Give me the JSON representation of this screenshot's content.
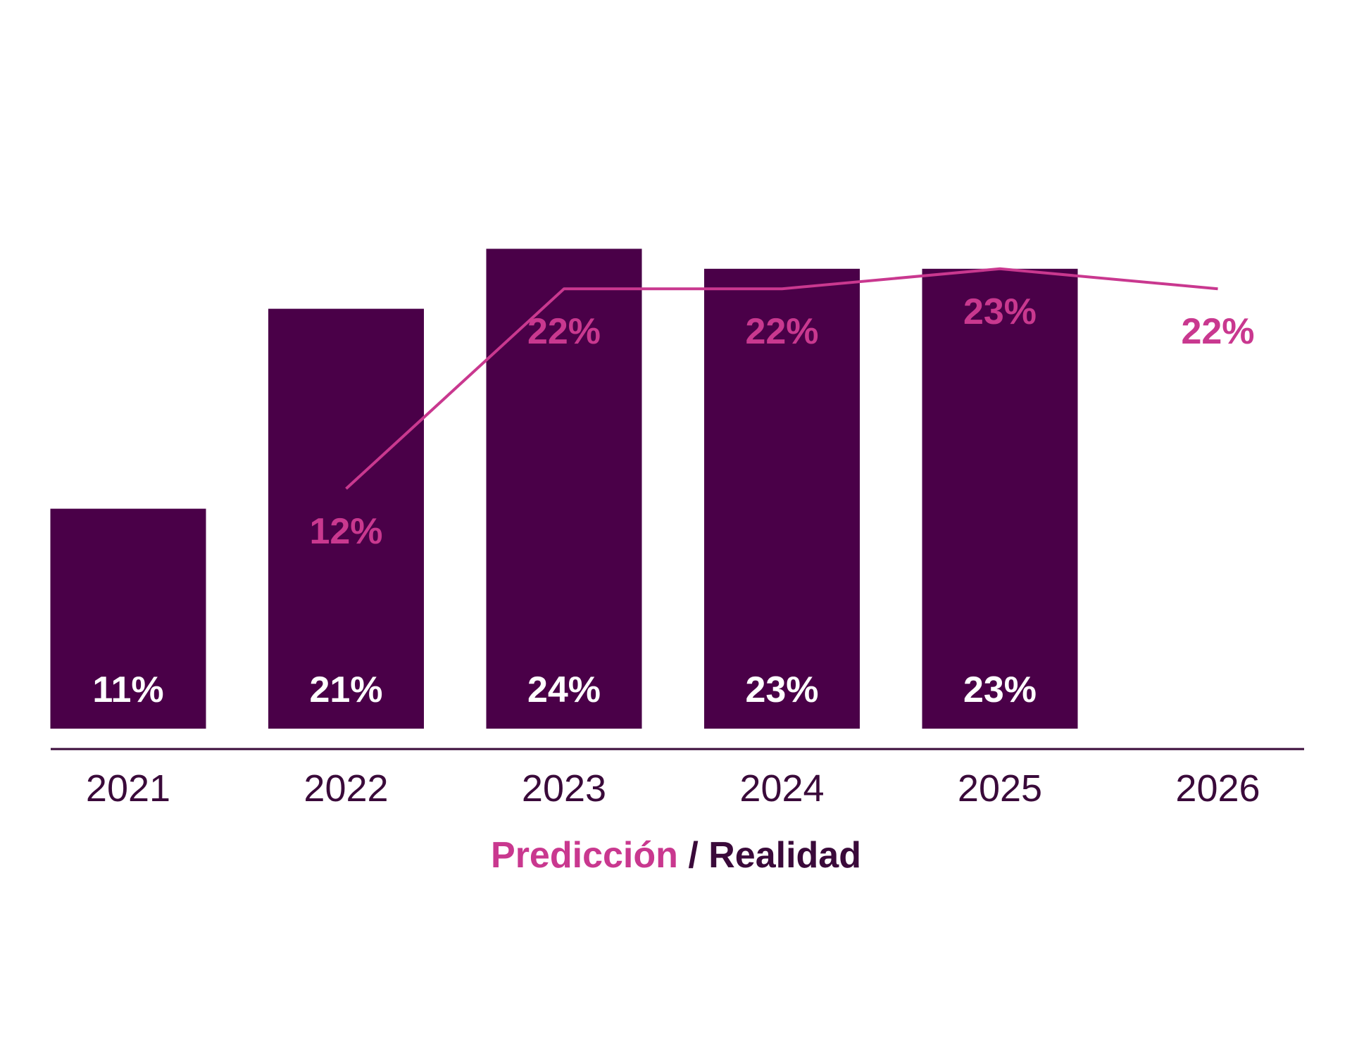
{
  "chart_data": {
    "type": "bar",
    "categories": [
      "2021",
      "2022",
      "2023",
      "2024",
      "2025",
      "2026"
    ],
    "series": [
      {
        "name": "Realidad",
        "type": "bar",
        "values": [
          11,
          21,
          24,
          23,
          23,
          null
        ],
        "labels": [
          "11%",
          "21%",
          "24%",
          "23%",
          "23%",
          ""
        ]
      },
      {
        "name": "Predicción",
        "type": "line",
        "values": [
          null,
          12,
          22,
          22,
          23,
          22
        ],
        "labels": [
          "",
          "12%",
          "22%",
          "22%",
          "23%",
          "22%"
        ]
      }
    ],
    "legend": {
      "prediction": "Predicción",
      "separator": "/",
      "reality": "Realidad",
      "position": "bottom-center"
    },
    "title": "",
    "xlabel": "",
    "ylabel": "",
    "ylim": [
      0,
      25
    ],
    "grid": false
  },
  "colors": {
    "bar": "#4a0048",
    "line": "#c9388f",
    "axis": "#3a0a3a",
    "year_text": "#3a0a3a",
    "bar_label": "#ffffff"
  }
}
